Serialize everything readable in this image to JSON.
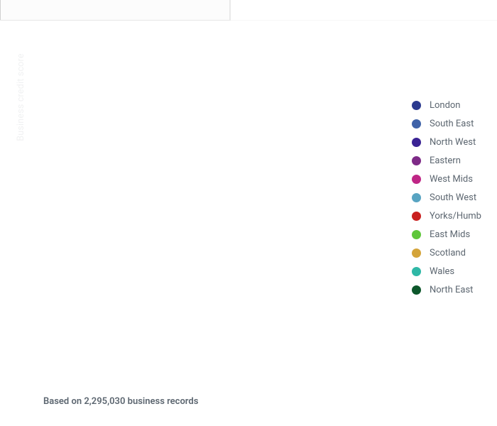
{
  "chart": {
    "type": "scatter",
    "background_color": "#ffffff",
    "y_axis_label": "Business credit score",
    "y_axis_label_color": "#f0f1f2",
    "y_axis_label_fontsize": 12.5,
    "divider_color": "#e7e7e7",
    "divider_faint_color": "#f7f7f7",
    "ghost_box_bg": "#fcfcfc",
    "left_edge_line_color": "#d0d0d0",
    "right_vert_line_color": "#e9e9e9"
  },
  "legend": {
    "label_color": "#5c6670",
    "label_fontsize": 13,
    "swatch_size": 13,
    "items": [
      {
        "label": "London",
        "color": "#2b3a8f"
      },
      {
        "label": "South East",
        "color": "#3f62a8"
      },
      {
        "label": "North West",
        "color": "#3a2394"
      },
      {
        "label": "Eastern",
        "color": "#7e2a87"
      },
      {
        "label": "West Mids",
        "color": "#bf2686"
      },
      {
        "label": "South West",
        "color": "#58a4c2"
      },
      {
        "label": "Yorks/Humb",
        "color": "#c9201f"
      },
      {
        "label": "East Mids",
        "color": "#5ec63a"
      },
      {
        "label": "Scotland",
        "color": "#d4a43a"
      },
      {
        "label": "Wales",
        "color": "#2fb8a6"
      },
      {
        "label": "North East",
        "color": "#0d572b"
      }
    ]
  },
  "footnote": {
    "text": "Based on 2,295,030 business records",
    "records_count": 2295030,
    "color": "#5c6670",
    "fontsize": 13,
    "fontweight": 600
  }
}
